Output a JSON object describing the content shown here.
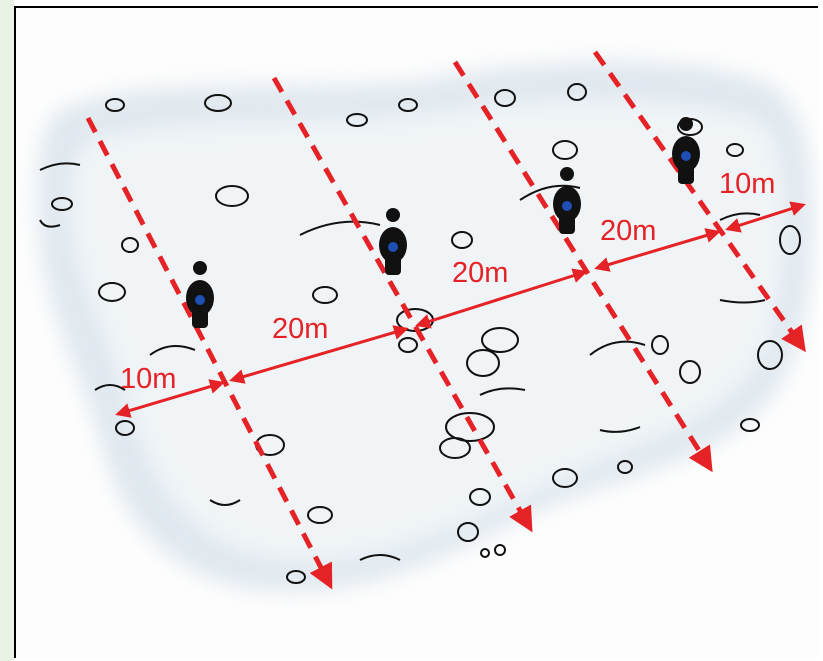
{
  "diagram": {
    "line_color": "#e52226",
    "person_color": "#111111",
    "person_dot_color": "#1f4fb5",
    "snow_color": "#dbe5ee",
    "labels": {
      "left_edge": "10m",
      "gap_1": "20m",
      "gap_2": "20m",
      "gap_3": "20m",
      "right_edge": "10m"
    }
  }
}
